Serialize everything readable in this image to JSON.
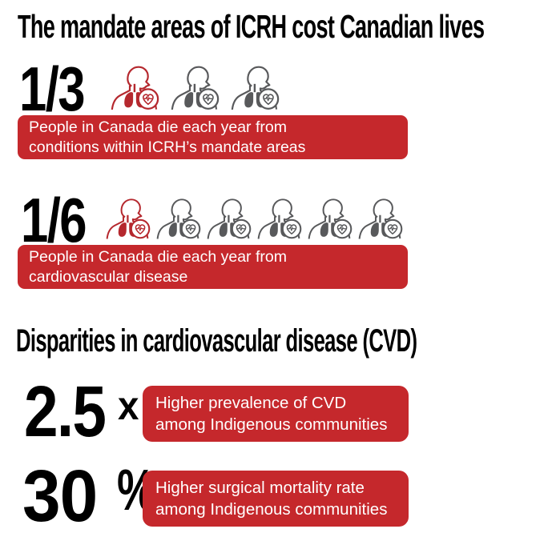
{
  "colors": {
    "red": "#C5282C",
    "icon_red": "#B5282E",
    "icon_gray": "#58595B",
    "headline_black": "#000000",
    "banner_text": "#FFFFFF"
  },
  "header": {
    "title": "The mandate areas of ICRH cost Canadian lives"
  },
  "stats": [
    {
      "value": "1/3",
      "icons": {
        "total": 3,
        "highlighted": 1,
        "icon": "person-lungs-heart-icon"
      },
      "label_line1": "People in Canada die each year from",
      "label_line2": "conditions within ICRH’s mandate areas"
    },
    {
      "value": "1/6",
      "icons": {
        "total": 6,
        "highlighted": 1,
        "icon": "person-lungs-heart-icon"
      },
      "label_line1": "People in Canada die each year from",
      "label_line2": "cardiovascular disease"
    }
  ],
  "disparities": {
    "title": "Disparities in cardiovascular disease (CVD)",
    "items": [
      {
        "value": "2.5",
        "unit": "x",
        "label_line1": "Higher prevalence of CVD",
        "label_line2": "among Indigenous communities"
      },
      {
        "value": "30",
        "unit": "%",
        "label_line1": "Higher surgical mortality rate",
        "label_line2": "among Indigenous communities"
      }
    ]
  },
  "chart_data": {
    "type": "pictogram-infographic",
    "title": "The mandate areas of ICRH cost Canadian lives",
    "sections": [
      {
        "statistic": "1/3",
        "ratio": 0.3333,
        "pictogram": {
          "total_icons": 3,
          "highlighted_icons": 1
        },
        "label": "People in Canada die each year from conditions within ICRH’s mandate areas"
      },
      {
        "statistic": "1/6",
        "ratio": 0.1667,
        "pictogram": {
          "total_icons": 6,
          "highlighted_icons": 1
        },
        "label": "People in Canada die each year from cardiovascular disease"
      },
      {
        "subtitle": "Disparities in cardiovascular disease (CVD)",
        "values": [
          {
            "value": 2.5,
            "unit": "x",
            "label": "Higher prevalence of CVD among Indigenous communities"
          },
          {
            "value": 30,
            "unit": "%",
            "label": "Higher surgical mortality rate among Indigenous communities"
          }
        ]
      }
    ],
    "legend": "red icon = affected proportion, gray icons = remainder",
    "palette": {
      "highlight": "#B5282E",
      "muted": "#58595B"
    }
  }
}
